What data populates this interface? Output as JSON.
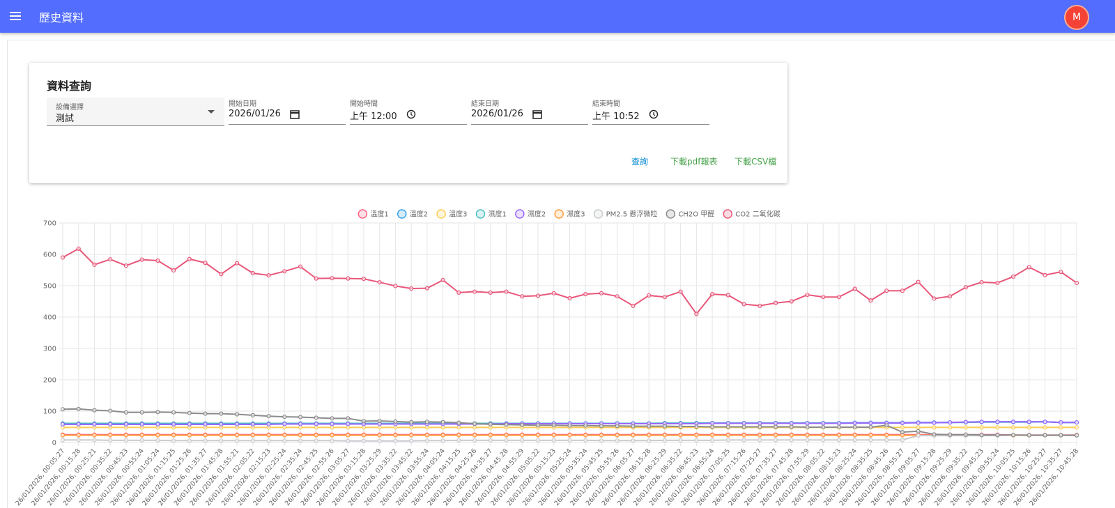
{
  "app_bar": {
    "title": "歷史資料",
    "avatar": "M"
  },
  "query_card": {
    "title": "資料查詢",
    "fields": [
      {
        "label": "設備選擇",
        "value": "測試"
      },
      {
        "label": "開始日期",
        "value": "2026/01/26"
      },
      {
        "label": "開始時間",
        "value": "上午 12:00"
      },
      {
        "label": "結束日期",
        "value": "2026/01/26"
      },
      {
        "label": "結束時間",
        "value": "上午 10:52"
      }
    ],
    "buttons": [
      "查詢",
      "下載pdf報表",
      "下載CSV檔"
    ]
  },
  "chart_data": {
    "type": "line",
    "legend": "top",
    "grid": true,
    "ylim": [
      0,
      700
    ],
    "yticks": [
      0,
      100,
      200,
      300,
      400,
      500,
      600,
      700
    ],
    "categories": [
      "26/01/2026, 00:05:27",
      "26/01/2026, 00:15:28",
      "26/01/2026, 00:25:21",
      "26/01/2026, 00:35:22",
      "26/01/2026, 00:45:23",
      "26/01/2026, 00:55:24",
      "26/01/2026, 01:05:24",
      "26/01/2026, 01:15:25",
      "26/01/2026, 01:25:26",
      "26/01/2026, 01:35:27",
      "26/01/2026, 01:45:28",
      "26/01/2026, 01:55:21",
      "26/01/2026, 02:05:22",
      "26/01/2026, 02:15:23",
      "26/01/2026, 02:25:24",
      "26/01/2026, 02:35:24",
      "26/01/2026, 02:45:25",
      "26/01/2026, 02:55:26",
      "26/01/2026, 03:05:27",
      "26/01/2026, 03:15:28",
      "26/01/2026, 03:25:29",
      "26/01/2026, 03:35:22",
      "26/01/2026, 03:45:22",
      "26/01/2026, 03:55:24",
      "26/01/2026, 04:05:24",
      "26/01/2026, 04:15:25",
      "26/01/2026, 04:25:26",
      "26/01/2026, 04:35:27",
      "26/01/2026, 04:45:28",
      "26/01/2026, 04:55:29",
      "26/01/2026, 05:05:22",
      "26/01/2026, 05:15:23",
      "26/01/2026, 05:25:24",
      "26/01/2026, 05:35:24",
      "26/01/2026, 05:45:25",
      "26/01/2026, 05:55:26",
      "26/01/2026, 06:05:27",
      "26/01/2026, 06:15:28",
      "26/01/2026, 06:25:29",
      "26/01/2026, 06:35:22",
      "26/01/2026, 06:45:23",
      "26/01/2026, 06:55:24",
      "26/01/2026, 07:05:25",
      "26/01/2026, 07:15:26",
      "26/01/2026, 07:25:27",
      "26/01/2026, 07:35:27",
      "26/01/2026, 07:45:28",
      "26/01/2026, 07:55:29",
      "26/01/2026, 08:05:22",
      "26/01/2026, 08:15:23",
      "26/01/2026, 08:25:24",
      "26/01/2026, 08:35:25",
      "26/01/2026, 08:45:26",
      "26/01/2026, 08:55:27",
      "26/01/2026, 09:05:27",
      "26/01/2026, 09:15:28",
      "26/01/2026, 09:25:29",
      "26/01/2026, 09:35:22",
      "26/01/2026, 09:45:23",
      "26/01/2026, 09:55:24",
      "26/01/2026, 10:05:25",
      "26/01/2026, 10:15:26",
      "26/01/2026, 10:25:27",
      "26/01/2026, 10:35:27",
      "26/01/2026, 10:45:28"
    ],
    "series": [
      {
        "name": "溫度1",
        "color": "#ff6384",
        "values": [
          25,
          25,
          25,
          25,
          25,
          25,
          25,
          25,
          25,
          25,
          25,
          25,
          25,
          25,
          25,
          25,
          25,
          25,
          25,
          25,
          25,
          25,
          25,
          25,
          25,
          25,
          25,
          25,
          25,
          25,
          25,
          25,
          25,
          25,
          25,
          25,
          25,
          25,
          25,
          25,
          25,
          25,
          25,
          25,
          25,
          25,
          25,
          25,
          25,
          25,
          25,
          25,
          25,
          25,
          25,
          25,
          25,
          25,
          25,
          25,
          24,
          24,
          24,
          24,
          24
        ]
      },
      {
        "name": "溫度2",
        "color": "#36a2eb",
        "values": [
          58,
          58,
          58,
          58,
          58,
          58,
          58,
          58,
          58,
          58,
          58,
          58,
          58,
          59,
          59,
          59,
          59,
          59,
          59,
          59,
          60,
          60,
          60,
          60,
          60,
          60,
          60,
          60,
          61,
          61,
          61,
          61,
          61,
          61,
          61,
          61,
          61,
          61,
          61,
          61,
          62,
          62,
          62,
          62,
          62,
          62,
          62,
          62,
          62,
          62,
          63,
          63,
          63,
          63,
          64,
          64,
          64,
          65,
          66,
          66,
          66,
          66,
          66,
          64,
          64
        ]
      },
      {
        "name": "溫度3",
        "color": "#ffcd56",
        "values": [
          48,
          48,
          48,
          48,
          48,
          48,
          48,
          48,
          48,
          48,
          48,
          48,
          48,
          48,
          48,
          48,
          48,
          48,
          48,
          48,
          48,
          48,
          48,
          48,
          48,
          48,
          48,
          48,
          48,
          48,
          48,
          48,
          48,
          48,
          48,
          48,
          48,
          48,
          48,
          48,
          48,
          48,
          48,
          48,
          48,
          48,
          48,
          48,
          48,
          48,
          48,
          48,
          48,
          48,
          48,
          48,
          48,
          48,
          48,
          48,
          48,
          48,
          48,
          48,
          48
        ]
      },
      {
        "name": "濕度1",
        "color": "#4bc0c0",
        "values": [
          61,
          61,
          61,
          61,
          61,
          61,
          61,
          61,
          61,
          61,
          61,
          61,
          61,
          61,
          61,
          61,
          61,
          61,
          61,
          61,
          61,
          61,
          61,
          61,
          61,
          61,
          61,
          61,
          61,
          61,
          61,
          61,
          61,
          61,
          61,
          61,
          61,
          61,
          62,
          62,
          62,
          62,
          62,
          62,
          62,
          62,
          62,
          62,
          62,
          62,
          62,
          62,
          62,
          63,
          63,
          63,
          64,
          64,
          65,
          65,
          65,
          65,
          66,
          64,
          64
        ]
      },
      {
        "name": "濕度2",
        "color": "#9966ff",
        "values": [
          58,
          58,
          58,
          58,
          58,
          58,
          58,
          58,
          58,
          58,
          58,
          58,
          58,
          58,
          59,
          59,
          59,
          59,
          59,
          59,
          59,
          59,
          59,
          59,
          59,
          59,
          59,
          59,
          60,
          60,
          60,
          60,
          60,
          60,
          60,
          60,
          60,
          60,
          60,
          60,
          60,
          61,
          61,
          61,
          61,
          61,
          61,
          61,
          61,
          61,
          62,
          62,
          62,
          62,
          63,
          63,
          64,
          65,
          66,
          66,
          66,
          66,
          66,
          64,
          64
        ]
      },
      {
        "name": "濕度3",
        "color": "#ff9f40",
        "values": [
          23,
          23,
          23,
          23,
          23,
          23,
          23,
          23,
          23,
          23,
          23,
          23,
          23,
          23,
          23,
          23,
          23,
          23,
          23,
          23,
          23,
          23,
          23,
          23,
          23,
          23,
          23,
          23,
          23,
          23,
          23,
          23,
          23,
          23,
          23,
          23,
          23,
          23,
          23,
          23,
          23,
          23,
          23,
          23,
          23,
          23,
          23,
          23,
          23,
          23,
          23,
          23,
          23,
          23,
          23,
          23,
          23,
          23,
          23,
          23,
          23,
          23,
          23,
          23,
          23
        ]
      },
      {
        "name": "PM2.5 懸浮微粒",
        "color": "#c9cbcf",
        "values": [
          8,
          8,
          8,
          7,
          7,
          7,
          7,
          6,
          6,
          6,
          6,
          6,
          6,
          6,
          6,
          6,
          6,
          6,
          5,
          5,
          5,
          5,
          5,
          6,
          6,
          7,
          7,
          7,
          7,
          7,
          7,
          7,
          7,
          7,
          6,
          6,
          6,
          6,
          7,
          7,
          7,
          7,
          8,
          8,
          8,
          8,
          8,
          8,
          8,
          8,
          8,
          8,
          8,
          8,
          22,
          22,
          22,
          22,
          22,
          22,
          24,
          24,
          24,
          24,
          22
        ]
      },
      {
        "name": "CH2O 甲醛",
        "color": "#8c8c8c",
        "values": [
          106,
          107,
          103,
          101,
          96,
          96,
          97,
          96,
          94,
          92,
          92,
          90,
          87,
          84,
          82,
          81,
          79,
          77,
          77,
          68,
          69,
          67,
          65,
          66,
          65,
          63,
          60,
          58,
          57,
          56,
          55,
          55,
          54,
          54,
          53,
          53,
          52,
          52,
          52,
          51,
          51,
          50,
          50,
          50,
          50,
          50,
          50,
          49,
          49,
          49,
          49,
          49,
          55,
          33,
          36,
          26,
          25,
          25,
          24,
          24,
          24,
          23,
          23,
          23,
          23
        ]
      },
      {
        "name": "CO2 二氧化碳",
        "color": "#e8577a",
        "values": [
          590,
          618,
          567,
          584,
          564,
          583,
          580,
          549,
          585,
          573,
          537,
          572,
          540,
          533,
          546,
          561,
          523,
          524,
          523,
          522,
          511,
          499,
          491,
          492,
          518,
          478,
          481,
          478,
          481,
          466,
          468,
          476,
          460,
          473,
          476,
          466,
          436,
          469,
          464,
          481,
          410,
          473,
          470,
          441,
          436,
          445,
          450,
          471,
          464,
          464,
          490,
          453,
          484,
          484,
          512,
          459,
          466,
          495,
          511,
          509,
          529,
          559,
          534,
          544,
          509
        ]
      }
    ]
  }
}
